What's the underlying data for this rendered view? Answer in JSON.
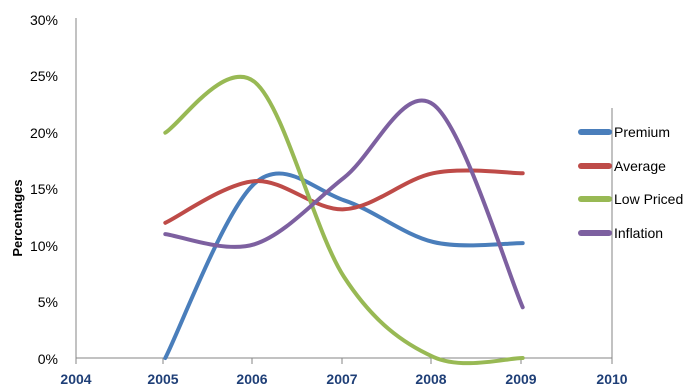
{
  "chart_data": {
    "type": "line",
    "title": "",
    "xlabel": "",
    "ylabel": "Percentages",
    "x_ticks": [
      "2004",
      "2005",
      "2006",
      "2007",
      "2008",
      "2009",
      "2010"
    ],
    "x_range": [
      2004,
      2010
    ],
    "y_ticks": [
      "0%",
      "5%",
      "10%",
      "15%",
      "20%",
      "25%",
      "30%"
    ],
    "ylim": [
      0,
      30
    ],
    "grid": false,
    "legend_position": "right",
    "x": [
      2005,
      2006,
      2007,
      2008,
      2009
    ],
    "series": [
      {
        "name": "Premium",
        "color": "#4a7ebb",
        "values": [
          0,
          15.5,
          14,
          10.3,
          10.2
        ]
      },
      {
        "name": "Average",
        "color": "#be4b48",
        "values": [
          12,
          15.7,
          13.2,
          16.4,
          16.4
        ]
      },
      {
        "name": "Low Priced",
        "color": "#98b954",
        "values": [
          20,
          24.5,
          7.2,
          0.1,
          0
        ]
      },
      {
        "name": "Inflation",
        "color": "#7d60a0",
        "values": [
          11,
          10.1,
          16,
          22.5,
          4.5
        ]
      }
    ]
  }
}
